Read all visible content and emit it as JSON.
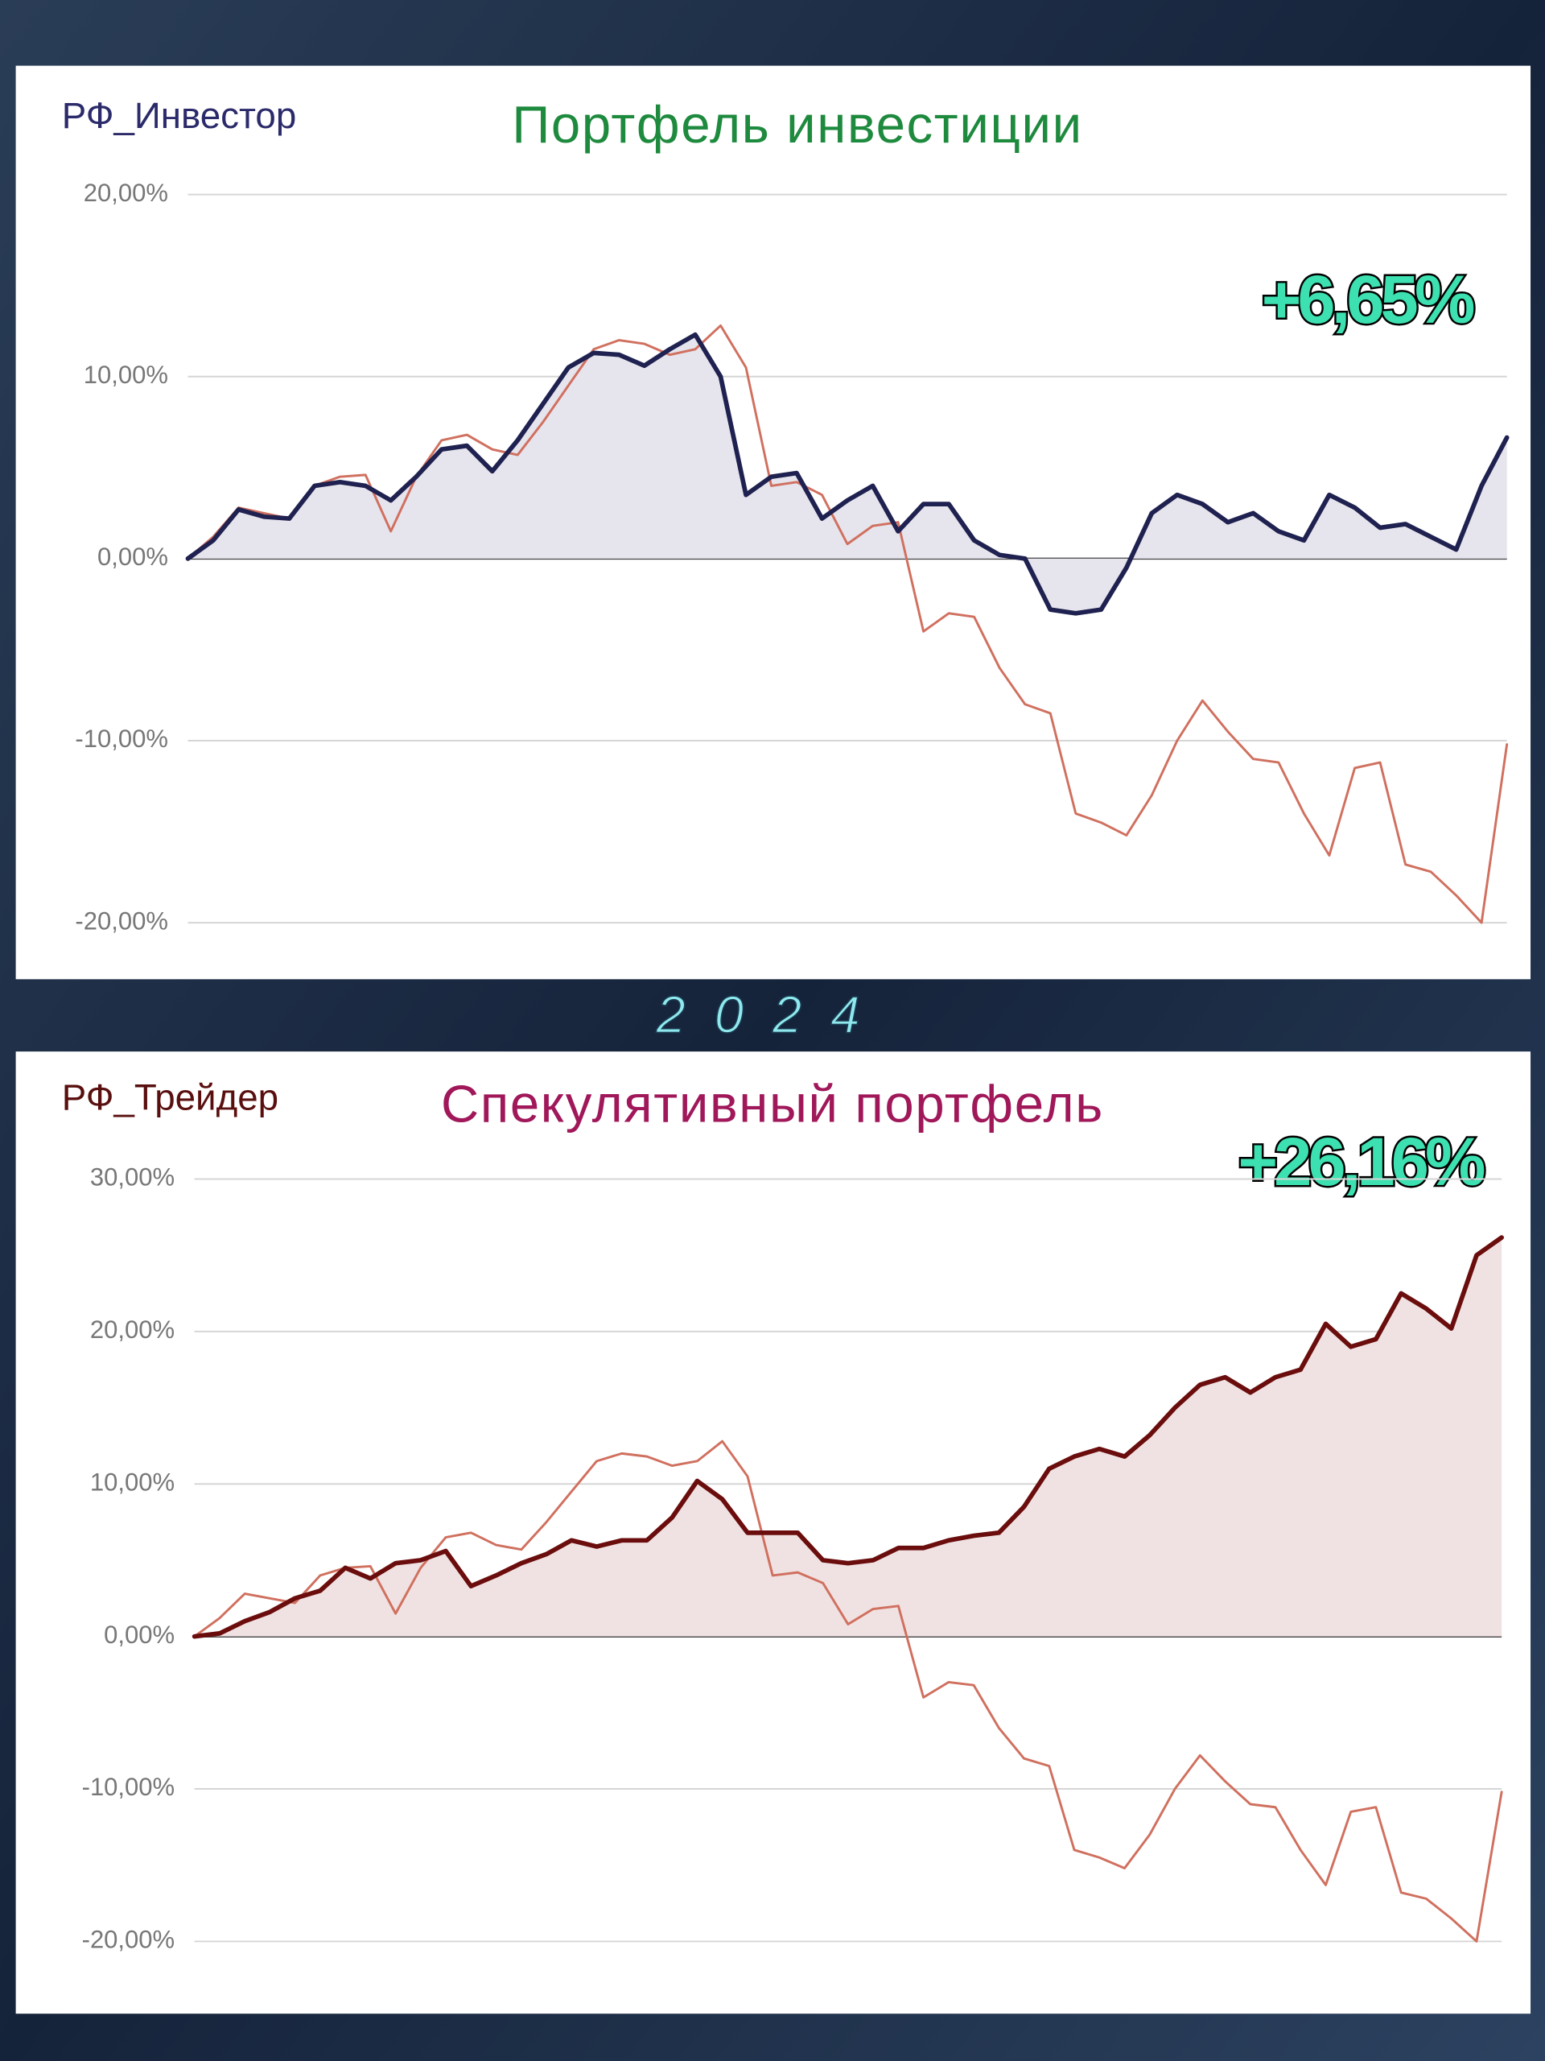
{
  "caption": "2024",
  "chart_data": [
    {
      "type": "line",
      "subtitle": "РФ_Инвестор",
      "title": "Портфель инвестиции",
      "annotation": "+6,65%",
      "ylim": [
        -20,
        20
      ],
      "yticks": [
        {
          "value": -20,
          "label": "-20,00%"
        },
        {
          "value": -10,
          "label": "-10,00%"
        },
        {
          "value": 0,
          "label": "0,00%"
        },
        {
          "value": 10,
          "label": "10,00%"
        },
        {
          "value": 20,
          "label": "20,00%"
        }
      ],
      "grid": true,
      "series": [
        {
          "color": "#d0705f",
          "values": [
            0,
            1.2,
            2.8,
            2.5,
            2.2,
            4.0,
            4.5,
            4.6,
            1.5,
            4.5,
            6.5,
            6.8,
            6.0,
            5.7,
            7.5,
            9.5,
            11.5,
            12.0,
            11.8,
            11.2,
            11.5,
            12.8,
            10.5,
            4,
            4.2,
            3.5,
            0.8,
            1.8,
            2.0,
            -4.0,
            -3.0,
            -3.2,
            -6.0,
            -8.0,
            -8.5,
            -14.0,
            -14.5,
            -15.2,
            -13.0,
            -10.0,
            -7.8,
            -9.5,
            -11.0,
            -11.2,
            -14,
            -16.3,
            -11.5,
            -11.2,
            -16.8,
            -17.2,
            -18.5,
            -20,
            -10.2
          ]
        },
        {
          "color": "#1f2150",
          "area_color": "#e6e4ec",
          "values": [
            0,
            1.0,
            2.7,
            2.3,
            2.2,
            4.0,
            4.2,
            4.0,
            3.2,
            4.5,
            6.0,
            6.2,
            4.8,
            6.5,
            8.5,
            10.5,
            11.3,
            11.2,
            10.6,
            11.5,
            12.3,
            10.0,
            3.5,
            4.5,
            4.7,
            2.2,
            3.2,
            4.0,
            1.5,
            3.0,
            3.0,
            1.0,
            0.2,
            0.0,
            -2.8,
            -3.0,
            -2.8,
            -0.5,
            2.5,
            3.5,
            3.0,
            2.0,
            2.5,
            1.5,
            1.0,
            3.5,
            2.8,
            1.7,
            1.9,
            1.2,
            0.5,
            4.0,
            6.65
          ]
        }
      ]
    },
    {
      "type": "line",
      "subtitle": "РФ_Трейдер",
      "title": "Спекулятивный портфель",
      "annotation": "+26,16%",
      "ylim": [
        -20,
        30
      ],
      "yticks": [
        {
          "value": -20,
          "label": "-20,00%"
        },
        {
          "value": -10,
          "label": "-10,00%"
        },
        {
          "value": 0,
          "label": "0,00%"
        },
        {
          "value": 10,
          "label": "10,00%"
        },
        {
          "value": 20,
          "label": "20,00%"
        },
        {
          "value": 30,
          "label": "30,00%"
        }
      ],
      "grid": true,
      "series": [
        {
          "color": "#d0705f",
          "values": [
            0,
            1.2,
            2.8,
            2.5,
            2.2,
            4.0,
            4.5,
            4.6,
            1.5,
            4.5,
            6.5,
            6.8,
            6.0,
            5.7,
            7.5,
            9.5,
            11.5,
            12.0,
            11.8,
            11.2,
            11.5,
            12.8,
            10.5,
            4,
            4.2,
            3.5,
            0.8,
            1.8,
            2.0,
            -4.0,
            -3.0,
            -3.2,
            -6.0,
            -8.0,
            -8.5,
            -14.0,
            -14.5,
            -15.2,
            -13.0,
            -10.0,
            -7.8,
            -9.5,
            -11.0,
            -11.2,
            -14,
            -16.3,
            -11.5,
            -11.2,
            -16.8,
            -17.2,
            -18.5,
            -20,
            -10.2
          ]
        },
        {
          "color": "#6b0d0d",
          "area_color": "#f0e2e2",
          "values": [
            0,
            0.2,
            1.0,
            1.6,
            2.5,
            3.0,
            4.5,
            3.8,
            4.8,
            5.0,
            5.6,
            3.3,
            4.0,
            4.8,
            5.4,
            6.3,
            5.9,
            6.3,
            6.3,
            7.8,
            10.2,
            9.0,
            6.8,
            6.8,
            6.8,
            5.0,
            4.8,
            5.0,
            5.8,
            5.8,
            6.3,
            6.6,
            6.8,
            8.5,
            11.0,
            11.8,
            12.3,
            11.8,
            13.2,
            15.0,
            16.5,
            17.0,
            16.0,
            17.0,
            17.5,
            20.5,
            19.0,
            19.5,
            22.5,
            21.5,
            20.2,
            25.0,
            26.16
          ]
        }
      ]
    }
  ]
}
